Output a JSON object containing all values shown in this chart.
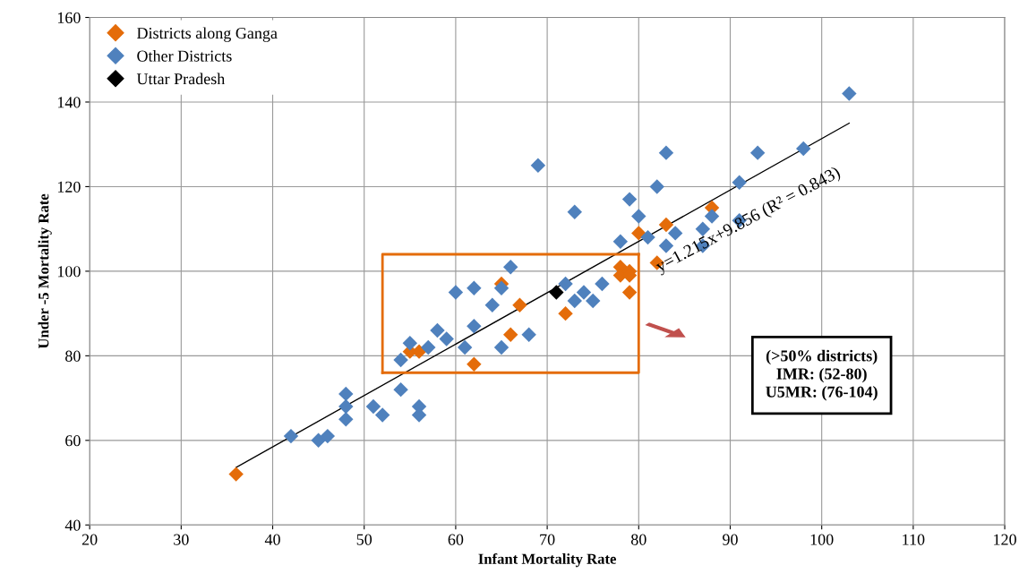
{
  "chart_data": {
    "type": "scatter",
    "xlabel": "Infant Mortality Rate",
    "ylabel": "Under -5 Mortality Rate",
    "xlim": [
      20,
      120
    ],
    "xticks": [
      20,
      30,
      40,
      50,
      60,
      70,
      80,
      90,
      100,
      110,
      120
    ],
    "ylim": [
      40,
      160
    ],
    "yticks": [
      40,
      60,
      80,
      100,
      120,
      140,
      160
    ],
    "grid": true,
    "legend": "top left",
    "marker": "diamond",
    "series": [
      {
        "name": "Districts along Ganga",
        "color": "#e46c0a",
        "x": [
          36,
          55,
          56,
          62,
          65,
          66,
          67,
          72,
          78,
          78,
          79,
          79,
          79,
          80,
          82,
          83,
          88
        ],
        "values": [
          52,
          81,
          81,
          78,
          97,
          85,
          92,
          90,
          101,
          99,
          100,
          95,
          99,
          109,
          102,
          111,
          115
        ]
      },
      {
        "name": "Other Districts",
        "color": "#4f81bd",
        "x": [
          42,
          45,
          46,
          48,
          48,
          48,
          51,
          52,
          54,
          54,
          55,
          56,
          56,
          57,
          58,
          59,
          60,
          61,
          62,
          62,
          64,
          65,
          65,
          66,
          68,
          69,
          72,
          73,
          73,
          74,
          75,
          76,
          78,
          79,
          80,
          81,
          82,
          83,
          83,
          84,
          87,
          87,
          88,
          91,
          91,
          93,
          98,
          103
        ],
        "values": [
          61,
          60,
          61,
          71,
          68,
          65,
          68,
          66,
          79,
          72,
          83,
          68,
          66,
          82,
          86,
          84,
          95,
          82,
          96,
          87,
          92,
          82,
          96,
          101,
          85,
          125,
          97,
          114,
          93,
          95,
          93,
          97,
          107,
          117,
          113,
          108,
          120,
          128,
          106,
          109,
          106,
          110,
          113,
          121,
          112,
          128,
          129,
          142
        ]
      },
      {
        "name": "Uttar Pradesh",
        "color": "#000000",
        "x": [
          71
        ],
        "values": [
          95
        ]
      },
      {
        "type": "line",
        "color": "#000000",
        "marker": "none",
        "line_style": "solid",
        "x": [
          36,
          103
        ],
        "values": [
          53.6,
          135
        ]
      },
      {
        "type": "line",
        "color": "#e46c0a",
        "marker": "none",
        "line_style": "solid",
        "x": [
          52,
          80,
          80
        ],
        "values": [
          76,
          76,
          104
        ]
      },
      {
        "type": "line",
        "color": "#e46c0a",
        "marker": "none",
        "line_style": "solid",
        "x": [
          52,
          52,
          80
        ],
        "values": [
          76,
          104,
          104
        ]
      }
    ],
    "annotations": [
      {
        "text": "y=1.215x+9.856 (R² = 0.843)",
        "x": 92,
        "y": 112
      },
      "(>50% districts)\nIMR: (52-80)\nU5MR: (76-104)"
    ]
  }
}
